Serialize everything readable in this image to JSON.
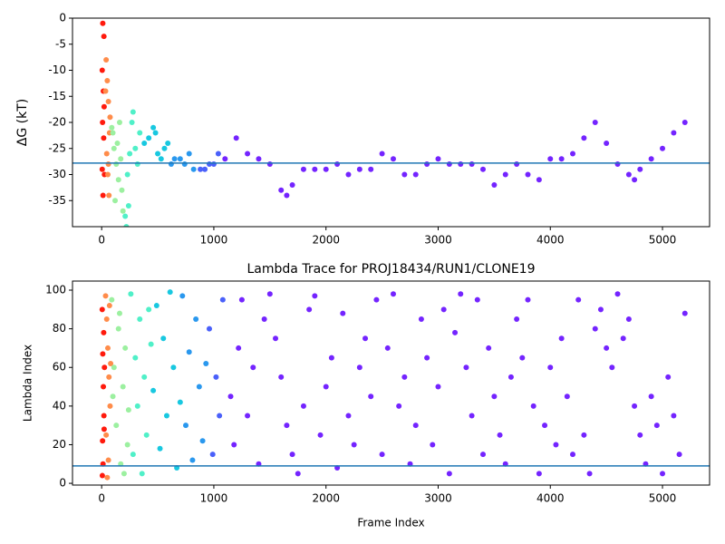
{
  "chart_data": [
    {
      "type": "scatter",
      "ylabel": "ΔG (kT)",
      "xlim": [
        -260,
        5420
      ],
      "ylim": [
        -40,
        0
      ],
      "xticks": [
        0,
        1000,
        2000,
        3000,
        4000,
        5000
      ],
      "yticks": [
        0,
        -5,
        -10,
        -15,
        -20,
        -25,
        -30,
        -35
      ],
      "hline": -27.8,
      "hline_color": "#1f77b4",
      "series": [
        {
          "color": "#ff1a0d",
          "x": [
            10,
            20,
            5,
            15,
            8,
            25,
            12,
            18,
            22,
            5
          ],
          "values": [
            -1,
            -3.5,
            -10,
            -14,
            -20,
            -30,
            -34,
            -23,
            -17,
            -29
          ]
        },
        {
          "color": "#ff8c4a",
          "x": [
            40,
            50,
            60,
            70,
            45,
            55,
            65,
            75,
            35,
            60
          ],
          "values": [
            -8,
            -12,
            -16,
            -22,
            -26,
            -30,
            -34,
            -19,
            -14,
            -28
          ]
        },
        {
          "color": "#9cf0a0",
          "x": [
            90,
            110,
            130,
            150,
            170,
            100,
            120,
            140,
            180,
            160,
            190
          ],
          "values": [
            -21,
            -25,
            -28,
            -31,
            -27,
            -22,
            -35,
            -24,
            -33,
            -20,
            -37
          ]
        },
        {
          "color": "#50f0c8",
          "x": [
            210,
            220,
            230,
            250,
            270,
            280,
            300,
            320,
            340,
            240
          ],
          "values": [
            -38,
            -40,
            -30,
            -26,
            -20,
            -18,
            -25,
            -28,
            -22,
            -36
          ]
        },
        {
          "color": "#18c8e0",
          "x": [
            380,
            420,
            460,
            480,
            500,
            530,
            560,
            590
          ],
          "values": [
            -24,
            -23,
            -21,
            -22,
            -26,
            -27,
            -25,
            -24
          ]
        },
        {
          "color": "#2a98ee",
          "x": [
            620,
            650,
            700,
            740,
            780,
            820
          ],
          "values": [
            -28,
            -27,
            -27,
            -28,
            -26,
            -29
          ]
        },
        {
          "color": "#4a60fa",
          "x": [
            880,
            920,
            960,
            1000,
            1040
          ],
          "values": [
            -29,
            -29,
            -28,
            -28,
            -26
          ]
        },
        {
          "color": "#7424ff",
          "x": [
            1100,
            1200,
            1300,
            1400,
            1500,
            1600,
            1650,
            1700,
            1800,
            1900,
            2000,
            2100,
            2200,
            2300,
            2400,
            2500,
            2600,
            2700,
            2800,
            2900,
            3000,
            3100,
            3200,
            3300,
            3400,
            3500,
            3600,
            3700,
            3800,
            3900,
            4000,
            4100,
            4200,
            4300,
            4400,
            4500,
            4600,
            4700,
            4750,
            4800,
            4900,
            5000,
            5100,
            5200
          ],
          "values": [
            -27,
            -23,
            -26,
            -27,
            -28,
            -33,
            -34,
            -32,
            -29,
            -29,
            -29,
            -28,
            -30,
            -29,
            -29,
            -26,
            -27,
            -30,
            -30,
            -28,
            -27,
            -28,
            -28,
            -28,
            -29,
            -32,
            -30,
            -28,
            -30,
            -31,
            -27,
            -27,
            -26,
            -23,
            -20,
            -24,
            -28,
            -30,
            -31,
            -29,
            -27,
            -25,
            -22,
            -20
          ]
        }
      ]
    },
    {
      "type": "scatter",
      "title": "Lambda Trace for PROJ18434/RUN1/CLONE19",
      "xlabel": "Frame Index",
      "ylabel": "Lambda Index",
      "xlim": [
        -260,
        5420
      ],
      "ylim": [
        -0.9,
        104.7
      ],
      "xticks": [
        0,
        1000,
        2000,
        3000,
        4000,
        5000
      ],
      "yticks": [
        0,
        20,
        40,
        60,
        80,
        100
      ],
      "hline": 9,
      "hline_color": "#1f77b4",
      "series": [
        {
          "color": "#ff1a0d",
          "x": [
            5,
            10,
            15,
            20,
            8,
            12,
            18,
            25,
            6,
            22
          ],
          "values": [
            90,
            67,
            50,
            35,
            22,
            10,
            78,
            60,
            4,
            28
          ]
        },
        {
          "color": "#ff8c4a",
          "x": [
            35,
            45,
            55,
            65,
            75,
            40,
            60,
            70,
            50,
            80
          ],
          "values": [
            97,
            85,
            70,
            55,
            40,
            25,
            12,
            92,
            3,
            62
          ]
        },
        {
          "color": "#9cf0a0",
          "x": [
            90,
            110,
            130,
            150,
            170,
            190,
            210,
            230,
            100,
            160,
            200,
            240
          ],
          "values": [
            95,
            60,
            30,
            80,
            10,
            50,
            70,
            20,
            45,
            88,
            5,
            38
          ]
        },
        {
          "color": "#50f0c8",
          "x": [
            260,
            280,
            300,
            320,
            340,
            360,
            380,
            400,
            420,
            440
          ],
          "values": [
            98,
            15,
            65,
            40,
            85,
            5,
            55,
            25,
            90,
            72
          ]
        },
        {
          "color": "#18c8e0",
          "x": [
            460,
            490,
            520,
            550,
            580,
            610,
            640,
            670,
            700
          ],
          "values": [
            48,
            92,
            18,
            75,
            35,
            99,
            60,
            8,
            42
          ]
        },
        {
          "color": "#2a98ee",
          "x": [
            720,
            750,
            780,
            810,
            840,
            870,
            900,
            930
          ],
          "values": [
            97,
            30,
            68,
            12,
            85,
            50,
            22,
            62
          ]
        },
        {
          "color": "#4a60fa",
          "x": [
            960,
            990,
            1020,
            1050,
            1080
          ],
          "values": [
            80,
            15,
            55,
            35,
            95
          ]
        },
        {
          "color": "#7424ff",
          "x": [
            1150,
            1180,
            1220,
            1250,
            1300,
            1350,
            1400,
            1450,
            1500,
            1550,
            1600,
            1650,
            1700,
            1750,
            1800,
            1850,
            1900,
            1950,
            2000,
            2050,
            2100,
            2150,
            2200,
            2250,
            2300,
            2350,
            2400,
            2450,
            2500,
            2550,
            2600,
            2650,
            2700,
            2750,
            2800,
            2850,
            2900,
            2950,
            3000,
            3050,
            3100,
            3150,
            3200,
            3250,
            3300,
            3350,
            3400,
            3450,
            3500,
            3550,
            3600,
            3650,
            3700,
            3750,
            3800,
            3850,
            3900,
            3950,
            4000,
            4050,
            4100,
            4150,
            4200,
            4250,
            4300,
            4350,
            4400,
            4450,
            4500,
            4550,
            4600,
            4650,
            4700,
            4750,
            4800,
            4850,
            4900,
            4950,
            5000,
            5050,
            5100,
            5150,
            5200
          ],
          "values": [
            45,
            20,
            70,
            95,
            35,
            60,
            10,
            85,
            98,
            75,
            55,
            30,
            15,
            5,
            40,
            90,
            97,
            25,
            50,
            65,
            8,
            88,
            35,
            20,
            60,
            75,
            45,
            95,
            15,
            70,
            98,
            40,
            55,
            10,
            30,
            85,
            65,
            20,
            50,
            90,
            5,
            78,
            98,
            60,
            35,
            95,
            15,
            70,
            45,
            25,
            10,
            55,
            85,
            65,
            95,
            40,
            5,
            30,
            60,
            20,
            75,
            45,
            15,
            95,
            25,
            5,
            80,
            90,
            70,
            60,
            98,
            75,
            85,
            40,
            25,
            10,
            45,
            30,
            5,
            55,
            35,
            15,
            88
          ]
        }
      ]
    }
  ]
}
